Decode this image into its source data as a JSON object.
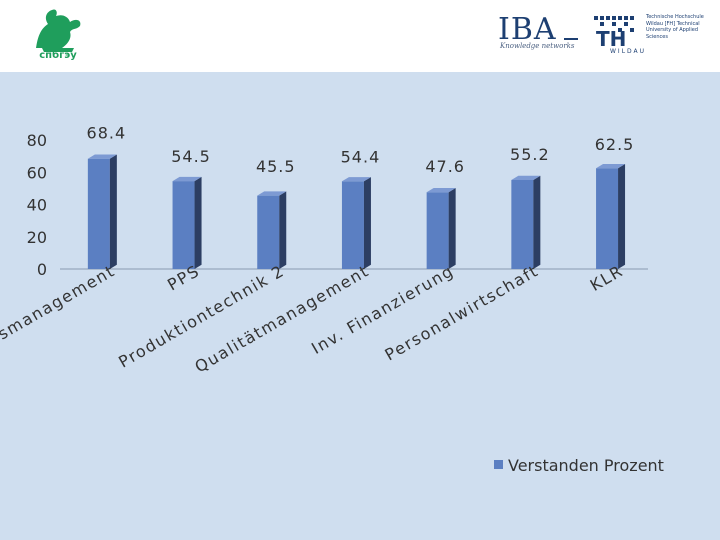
{
  "header": {
    "left_logo_text": "спбгэу",
    "iba_logo_text": "IBA",
    "iba_tagline": "Knowledge networks",
    "th_logo_text": "TH",
    "th_sublabel": "WILDAU",
    "th_side_text": "Technische Hochschule Wildau [FH] Technical University of Applied Sciences"
  },
  "chart_data": {
    "type": "bar",
    "title": "",
    "xlabel": "",
    "ylabel": "",
    "ylim": [
      0,
      80
    ],
    "yticks": [
      0,
      20,
      40,
      60,
      80
    ],
    "grid": false,
    "legend_position": "bottom-right",
    "categories": [
      "Führungsmanagement",
      "PPS",
      "Produktiontechnik 2",
      "Qualitätmanagement",
      "Inv. Finanzierung",
      "Personalwirtschaft",
      "KLR"
    ],
    "series": [
      {
        "name": "Verstanden Prozent",
        "values": [
          68.4,
          54.5,
          45.5,
          54.4,
          47.6,
          55.2,
          62.5
        ],
        "color": "#5b7fc2"
      }
    ]
  }
}
